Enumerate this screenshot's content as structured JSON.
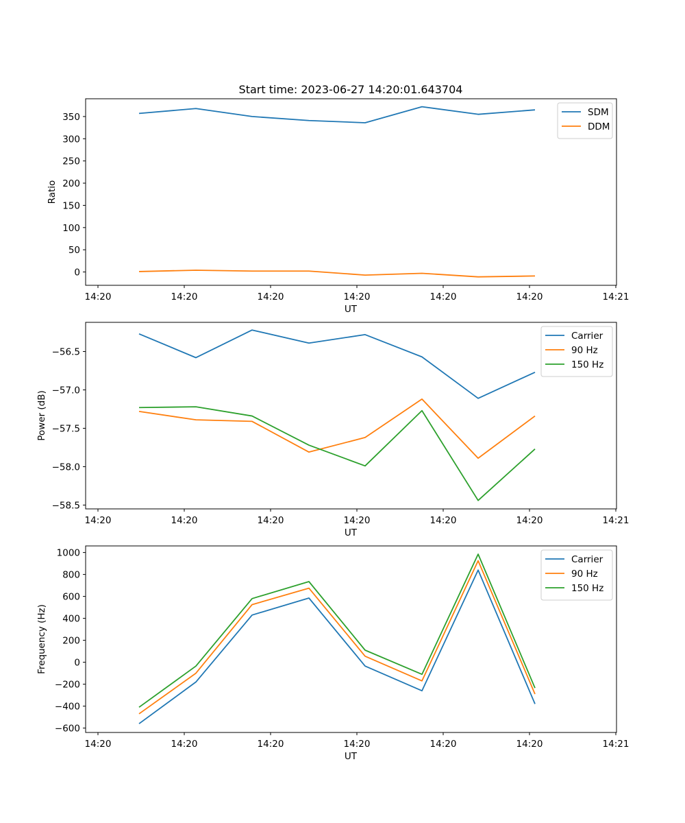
{
  "figure": {
    "title": "Start time: 2023-06-27 14:20:01.643704"
  },
  "chart_data": [
    {
      "type": "line",
      "x": [
        "14:20:01.6",
        "14:20:03.6",
        "14:20:05.6",
        "14:20:07.6",
        "14:20:09.6",
        "14:20:11.6",
        "14:20:13.6",
        "14:20:15.6"
      ],
      "xticks": [
        "14:20",
        "14:20",
        "14:20",
        "14:20",
        "14:20",
        "14:20",
        "14:21"
      ],
      "xlabel": "UT",
      "ylabel": "Ratio",
      "ylim": [
        -30,
        390
      ],
      "yticks": [
        0,
        50,
        100,
        150,
        200,
        250,
        300,
        350
      ],
      "legend": "top-right",
      "grid": false,
      "series": [
        {
          "name": "SDM",
          "color": "#1f77b4",
          "values": [
            357,
            368,
            350,
            341,
            336,
            372,
            355,
            365
          ]
        },
        {
          "name": "DDM",
          "color": "#ff7f0e",
          "values": [
            1,
            4,
            2,
            2,
            -7,
            -3,
            -11,
            -9
          ]
        }
      ]
    },
    {
      "type": "line",
      "x": [
        "14:20:01.6",
        "14:20:03.6",
        "14:20:05.6",
        "14:20:07.6",
        "14:20:09.6",
        "14:20:11.6",
        "14:20:13.6",
        "14:20:15.6"
      ],
      "xticks": [
        "14:20",
        "14:20",
        "14:20",
        "14:20",
        "14:20",
        "14:20",
        "14:21"
      ],
      "xlabel": "UT",
      "ylabel": "Power (dB)",
      "ylim": [
        -58.55,
        -56.12
      ],
      "yticks": [
        -58.5,
        -58.0,
        -57.5,
        -57.0,
        -56.5
      ],
      "yticklabels": [
        "−58.5",
        "−58.0",
        "−57.5",
        "−57.0",
        "−56.5"
      ],
      "legend": "top-right",
      "grid": false,
      "series": [
        {
          "name": "Carrier",
          "color": "#1f77b4",
          "values": [
            -56.27,
            -56.58,
            -56.22,
            -56.39,
            -56.28,
            -56.57,
            -57.11,
            -56.77
          ]
        },
        {
          "name": "90 Hz",
          "color": "#ff7f0e",
          "values": [
            -57.28,
            -57.39,
            -57.41,
            -57.81,
            -57.62,
            -57.12,
            -57.89,
            -57.34
          ]
        },
        {
          "name": "150 Hz",
          "color": "#2ca02c",
          "values": [
            -57.23,
            -57.22,
            -57.34,
            -57.72,
            -57.99,
            -57.27,
            -58.44,
            -57.77
          ]
        }
      ]
    },
    {
      "type": "line",
      "x": [
        "14:20:01.6",
        "14:20:03.6",
        "14:20:05.6",
        "14:20:07.6",
        "14:20:09.6",
        "14:20:11.6",
        "14:20:13.6",
        "14:20:15.6"
      ],
      "xticks": [
        "14:20",
        "14:20",
        "14:20",
        "14:20",
        "14:20",
        "14:20",
        "14:21"
      ],
      "xlabel": "UT",
      "ylabel": "Frequency (Hz)",
      "ylim": [
        -640,
        1060
      ],
      "yticks": [
        -600,
        -400,
        -200,
        0,
        200,
        400,
        600,
        800,
        1000
      ],
      "yticklabels": [
        "−600",
        "−400",
        "−200",
        "0",
        "200",
        "400",
        "600",
        "800",
        "1000"
      ],
      "legend": "top-right",
      "grid": false,
      "series": [
        {
          "name": "Carrier",
          "color": "#1f77b4",
          "values": [
            -560,
            -180,
            430,
            585,
            -35,
            -260,
            840,
            -380
          ]
        },
        {
          "name": "90 Hz",
          "color": "#ff7f0e",
          "values": [
            -470,
            -100,
            525,
            675,
            55,
            -170,
            925,
            -290
          ]
        },
        {
          "name": "150 Hz",
          "color": "#2ca02c",
          "values": [
            -410,
            -35,
            580,
            735,
            110,
            -110,
            985,
            -235
          ]
        }
      ]
    }
  ]
}
